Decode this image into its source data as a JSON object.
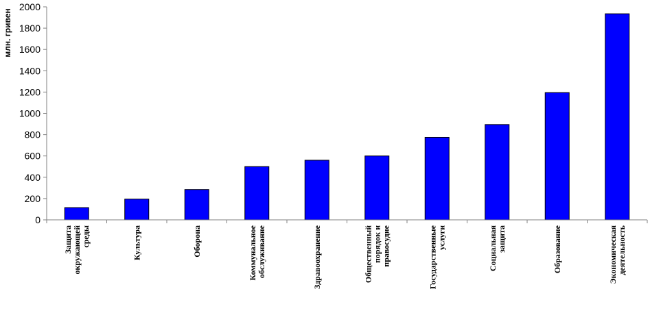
{
  "chart_data": {
    "type": "bar",
    "ylabel": "млн. гривен",
    "ylim": [
      0,
      2000
    ],
    "yticks": [
      0,
      200,
      400,
      600,
      800,
      1000,
      1200,
      1400,
      1600,
      1800,
      2000
    ],
    "grid": false,
    "legend": "none",
    "bar_color": "#0000ff",
    "categories": [
      [
        "Защита",
        "окружающей",
        "среды"
      ],
      [
        "Культура"
      ],
      [
        "Оборона"
      ],
      [
        "Коммунальное",
        "обслуживание"
      ],
      [
        "Здравоохранение"
      ],
      [
        "Общественный",
        "порядок и",
        "правосудие"
      ],
      [
        "Государственные",
        "услуги"
      ],
      [
        "Социальная",
        "защита"
      ],
      [
        "Образование"
      ],
      [
        "Экономическая",
        "деятельность"
      ]
    ],
    "values": [
      115,
      195,
      285,
      500,
      560,
      600,
      775,
      895,
      1195,
      1935
    ]
  }
}
